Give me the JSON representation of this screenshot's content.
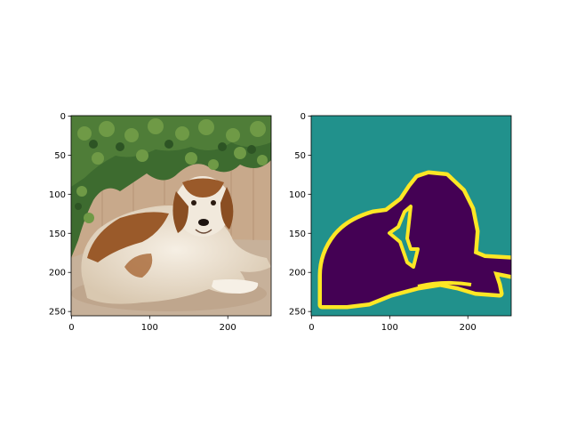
{
  "chart_data": [
    {
      "type": "image",
      "title": "",
      "xlabel": "",
      "ylabel": "",
      "xlim": [
        0,
        255
      ],
      "ylim": [
        255,
        0
      ],
      "xticks": [
        0,
        100,
        200
      ],
      "yticks": [
        0,
        50,
        100,
        150,
        200,
        250
      ],
      "grid": false,
      "content": "photo-dog"
    },
    {
      "type": "heatmap",
      "title": "",
      "xlabel": "",
      "ylabel": "",
      "xlim": [
        0,
        255
      ],
      "ylim": [
        255,
        0
      ],
      "xticks": [
        0,
        100,
        200
      ],
      "yticks": [
        0,
        50,
        100,
        150,
        200,
        250
      ],
      "grid": false,
      "colormap": "viridis",
      "classes": [
        {
          "value": 0,
          "color": "#440154"
        },
        {
          "value": 1,
          "color": "#21918c"
        },
        {
          "value": 2,
          "color": "#fde725"
        }
      ],
      "content": "segmentation-mask"
    }
  ],
  "colors": {
    "mask_background": "#21918c",
    "mask_object": "#440154",
    "mask_border": "#fde725",
    "foliage_dark": "#3d6b2f",
    "foliage_light": "#6f9a46",
    "wall": "#c8a98b",
    "ground": "#c7b19a",
    "dog_brown": "#9a5a2a",
    "dog_white": "#f1e9dc"
  }
}
